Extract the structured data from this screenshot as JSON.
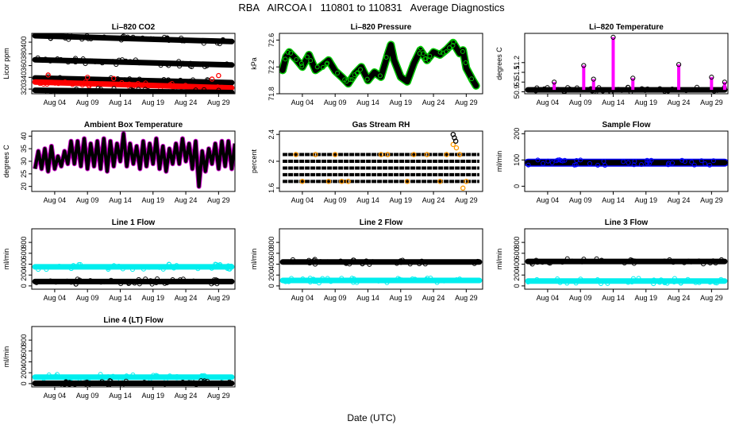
{
  "page": {
    "title": "RBA   AIRCOA I   110801 to 110831   Average Diagnostics",
    "x_axis_title": "Date (UTC)"
  },
  "chart_data": [
    {
      "type": "scatter",
      "title": "Li–820 CO2",
      "ylabel": "Licor ppm",
      "ylim": [
        312,
        415
      ],
      "yticks": [
        320,
        340,
        360,
        380,
        400
      ],
      "xticks": [
        "Aug 04",
        "Aug 09",
        "Aug 14",
        "Aug 19",
        "Aug 24",
        "Aug 29"
      ],
      "series": [
        {
          "name": "band-top",
          "color": "#000000",
          "kind": "line",
          "x": [
            1,
            31
          ],
          "y": [
            411,
            401
          ]
        },
        {
          "name": "band-upper",
          "color": "#000000",
          "kind": "line",
          "x": [
            1,
            31
          ],
          "y": [
            370,
            361
          ]
        },
        {
          "name": "band-middle",
          "color": "#000000",
          "kind": "line",
          "x": [
            1,
            31
          ],
          "y": [
            339,
            331
          ]
        },
        {
          "name": "band-red",
          "color": "#ff0000",
          "kind": "line",
          "x": [
            1,
            31
          ],
          "y": [
            332,
            322
          ]
        },
        {
          "name": "band-bottom",
          "color": "#000000",
          "kind": "line",
          "x": [
            1,
            31
          ],
          "y": [
            318,
            314
          ]
        },
        {
          "name": "red-points",
          "color": "#ff0000",
          "kind": "points",
          "x": [
            3,
            9,
            13,
            28,
            29
          ],
          "y": [
            344,
            340,
            338,
            337,
            343
          ]
        }
      ]
    },
    {
      "type": "line",
      "title": "Li–820 Pressure",
      "ylabel": "kPa",
      "ylim": [
        71.8,
        72.7
      ],
      "yticks": [
        71.8,
        72.2,
        72.6
      ],
      "xticks": [
        "Aug 04",
        "Aug 09",
        "Aug 14",
        "Aug 19",
        "Aug 24",
        "Aug 29"
      ],
      "series": [
        {
          "name": "pressure",
          "color": "#000000",
          "highlight": "#00cc00",
          "kind": "line",
          "x": [
            1,
            1.5,
            2,
            3,
            4,
            5,
            6,
            7,
            8,
            9,
            10,
            11,
            12,
            13,
            14,
            15,
            16,
            17,
            17.5,
            18,
            19,
            20,
            21,
            22,
            23,
            24,
            25,
            26,
            27,
            28,
            28.5,
            29,
            30,
            30.5
          ],
          "y": [
            72.15,
            72.35,
            72.42,
            72.32,
            72.2,
            72.38,
            72.15,
            72.22,
            72.3,
            72.14,
            72.05,
            71.95,
            72.1,
            72.2,
            72.0,
            72.12,
            72.05,
            72.38,
            72.53,
            72.3,
            72.05,
            71.98,
            72.25,
            72.45,
            72.3,
            72.42,
            72.38,
            72.46,
            72.56,
            72.4,
            72.45,
            72.18,
            72.0,
            71.92
          ]
        }
      ]
    },
    {
      "type": "scatter",
      "title": "Li–820 Temperature",
      "ylabel": "degrees C",
      "ylim": [
        50.88,
        51.5
      ],
      "yticks": [
        50.9,
        51.0,
        51.1,
        51.2
      ],
      "xticks": [
        "Aug 04",
        "Aug 09",
        "Aug 14",
        "Aug 19",
        "Aug 24",
        "Aug 29"
      ],
      "series": [
        {
          "name": "baseline",
          "color": "#000000",
          "kind": "line",
          "x": [
            1,
            31
          ],
          "y": [
            50.92,
            50.92
          ]
        },
        {
          "name": "spikes",
          "color": "#ff00ff",
          "kind": "spikes",
          "x": [
            5,
            9.5,
            11,
            14,
            17,
            24,
            29,
            31
          ],
          "y": [
            51.0,
            51.17,
            51.03,
            51.46,
            51.04,
            51.18,
            51.05,
            51.0
          ]
        }
      ]
    },
    {
      "type": "line",
      "title": "Ambient Box Temperature",
      "ylabel": "degrees C",
      "ylim": [
        18,
        42
      ],
      "yticks": [
        20,
        25,
        30,
        35,
        40
      ],
      "xticks": [
        "Aug 04",
        "Aug 09",
        "Aug 14",
        "Aug 19",
        "Aug 24",
        "Aug 29"
      ],
      "series": [
        {
          "name": "ambient",
          "color": "#000000",
          "highlight": "#cc00cc",
          "kind": "diurnal",
          "x": [
            1,
            31
          ],
          "daily_min": [
            27,
            27,
            26,
            27,
            28,
            29,
            29,
            28,
            27,
            28,
            27,
            26,
            28,
            30,
            28,
            29,
            27,
            28,
            29,
            27,
            26,
            29,
            29,
            30,
            27,
            20,
            26,
            29,
            27,
            28,
            27
          ],
          "daily_max": [
            34,
            35,
            36,
            32,
            34,
            38,
            38,
            39,
            37,
            38,
            39,
            38,
            37,
            41,
            37,
            36,
            38,
            37,
            39,
            36,
            35,
            37,
            39,
            37,
            38,
            34,
            35,
            37,
            38,
            38,
            37
          ]
        }
      ]
    },
    {
      "type": "scatter",
      "title": "Gas Stream RH",
      "ylabel": "percent",
      "ylim": [
        1.55,
        2.45
      ],
      "yticks": [
        1.6,
        2.0,
        2.4
      ],
      "xticks": [
        "Aug 04",
        "Aug 09",
        "Aug 14",
        "Aug 19",
        "Aug 24",
        "Aug 29"
      ],
      "series": [
        {
          "name": "rh-levels",
          "color": "#000000",
          "kind": "levels",
          "x": [
            1,
            31
          ],
          "levels": [
            1.7,
            1.8,
            1.9,
            2.0,
            2.1
          ]
        },
        {
          "name": "rh-orange",
          "color": "#ff9900",
          "kind": "points",
          "x": [
            3,
            4,
            6,
            8,
            9,
            10,
            11,
            16,
            17,
            20,
            21,
            23,
            25,
            26,
            27,
            27.5,
            28,
            28.5,
            29
          ],
          "y": [
            2.1,
            1.7,
            2.1,
            1.7,
            2.1,
            1.7,
            1.7,
            2.1,
            2.1,
            1.7,
            2.1,
            2.1,
            1.7,
            2.1,
            2.25,
            2.2,
            2.1,
            1.6,
            1.7
          ]
        },
        {
          "name": "rh-high",
          "color": "#000000",
          "kind": "points",
          "x": [
            27,
            27.2,
            27.4
          ],
          "y": [
            2.4,
            2.35,
            2.3
          ]
        }
      ]
    },
    {
      "type": "line",
      "title": "Sample Flow",
      "ylabel": "ml/min",
      "ylim": [
        -20,
        210
      ],
      "yticks": [
        0,
        100,
        200
      ],
      "xticks": [
        "Aug 04",
        "Aug 09",
        "Aug 14",
        "Aug 19",
        "Aug 24",
        "Aug 29"
      ],
      "series": [
        {
          "name": "sample",
          "color": "#000000",
          "highlight": "#0000ff",
          "kind": "line",
          "x": [
            1,
            31
          ],
          "y": [
            90,
            90
          ]
        }
      ]
    },
    {
      "type": "line",
      "title": "Line 1 Flow",
      "ylabel": "ml/min",
      "ylim": [
        -60,
        1050
      ],
      "yticks": [
        0,
        200,
        400,
        600,
        800
      ],
      "xticks": [
        "Aug 04",
        "Aug 09",
        "Aug 14",
        "Aug 19",
        "Aug 24",
        "Aug 29"
      ],
      "series": [
        {
          "name": "cyan",
          "color": "#00eeee",
          "kind": "line",
          "x": [
            1,
            31
          ],
          "y": [
            350,
            350
          ]
        },
        {
          "name": "black",
          "color": "#000000",
          "kind": "line",
          "x": [
            1,
            31
          ],
          "y": [
            80,
            80
          ]
        }
      ]
    },
    {
      "type": "line",
      "title": "Line 2 Flow",
      "ylabel": "ml/min",
      "ylim": [
        -60,
        1050
      ],
      "yticks": [
        0,
        200,
        400,
        600,
        800
      ],
      "xticks": [
        "Aug 04",
        "Aug 09",
        "Aug 14",
        "Aug 19",
        "Aug 24",
        "Aug 29"
      ],
      "series": [
        {
          "name": "black",
          "color": "#000000",
          "kind": "line",
          "x": [
            1,
            31
          ],
          "y": [
            440,
            440
          ]
        },
        {
          "name": "cyan",
          "color": "#00eeee",
          "kind": "line",
          "x": [
            1,
            31
          ],
          "y": [
            100,
            100
          ]
        }
      ]
    },
    {
      "type": "line",
      "title": "Line 3 Flow",
      "ylabel": "ml/min",
      "ylim": [
        -60,
        1050
      ],
      "yticks": [
        0,
        200,
        400,
        600,
        800
      ],
      "xticks": [
        "Aug 04",
        "Aug 09",
        "Aug 14",
        "Aug 19",
        "Aug 24",
        "Aug 29"
      ],
      "series": [
        {
          "name": "black",
          "color": "#000000",
          "kind": "line",
          "x": [
            1,
            31
          ],
          "y": [
            450,
            450
          ]
        },
        {
          "name": "cyan",
          "color": "#00eeee",
          "kind": "line",
          "x": [
            1,
            31
          ],
          "y": [
            90,
            90
          ]
        }
      ]
    },
    {
      "type": "line",
      "title": "Line 4 (LT) Flow",
      "ylabel": "ml/min",
      "ylim": [
        -60,
        1050
      ],
      "yticks": [
        0,
        200,
        400,
        600,
        800
      ],
      "xticks": [
        "Aug 04",
        "Aug 09",
        "Aug 14",
        "Aug 19",
        "Aug 24",
        "Aug 29"
      ],
      "series": [
        {
          "name": "cyan",
          "color": "#00eeee",
          "kind": "line",
          "x": [
            1,
            31
          ],
          "y": [
            120,
            120
          ]
        },
        {
          "name": "black",
          "color": "#000000",
          "kind": "line",
          "x": [
            1,
            31
          ],
          "y": [
            5,
            5
          ]
        }
      ]
    }
  ]
}
